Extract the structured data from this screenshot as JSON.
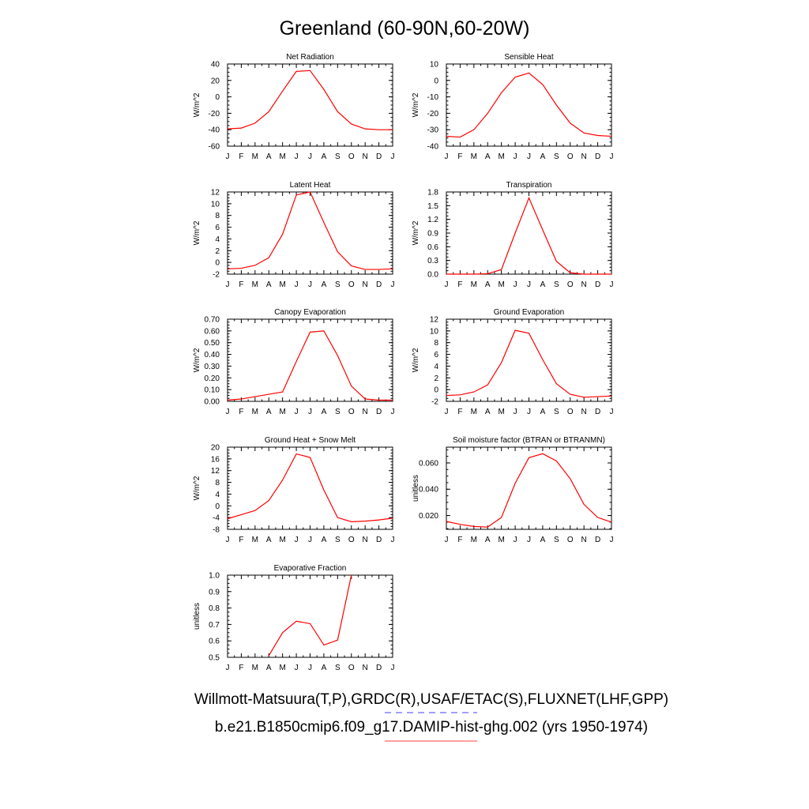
{
  "title": "Greenland (60-90N,60-20W)",
  "line_color": "#ff0000",
  "legend": {
    "obs_label": "Willmott-Matsuura(T,P),GRDC(R),USAF/ETAC(S),FLUXNET(LHF,GPP)",
    "obs_line_color": "#6666ff",
    "obs_line_style": "dashed",
    "model_label": "b.e21.B1850cmip6.f09_g17.DAMIP-hist-ghg.002 (yrs 1950-1974)",
    "model_line_color": "#ff6666",
    "model_line_style": "solid"
  },
  "chart_data": [
    {
      "type": "line",
      "title": "Net Radiation",
      "ylabel": "W/m^2",
      "xticks": [
        "J",
        "F",
        "M",
        "A",
        "M",
        "J",
        "J",
        "A",
        "S",
        "O",
        "N",
        "D",
        "J"
      ],
      "x": [
        1,
        2,
        3,
        4,
        5,
        6,
        7,
        8,
        9,
        10,
        11,
        12,
        13
      ],
      "ylim": [
        -60,
        40
      ],
      "yticks": [
        -60,
        -40,
        -20,
        0,
        20,
        40
      ],
      "ytick_labels": [
        "-60",
        "-40",
        "-20",
        "0",
        "20",
        "40"
      ],
      "series": [
        {
          "values": [
            -39,
            -38,
            -32,
            -18,
            7,
            31,
            32,
            9,
            -18,
            -33,
            -39,
            -40,
            -40
          ]
        }
      ]
    },
    {
      "type": "line",
      "title": "Sensible Heat",
      "ylabel": "W/m^2",
      "xticks": [
        "J",
        "F",
        "M",
        "A",
        "M",
        "J",
        "J",
        "A",
        "S",
        "O",
        "N",
        "D",
        "J"
      ],
      "x": [
        1,
        2,
        3,
        4,
        5,
        6,
        7,
        8,
        9,
        10,
        11,
        12,
        13
      ],
      "ylim": [
        -40,
        10
      ],
      "yticks": [
        -40,
        -30,
        -20,
        -10,
        0,
        10
      ],
      "ytick_labels": [
        "-40",
        "-30",
        "-20",
        "-10",
        "0",
        "10"
      ],
      "series": [
        {
          "values": [
            -34,
            -34.5,
            -30,
            -20,
            -7.5,
            2,
            4.5,
            -2.5,
            -15,
            -26,
            -32,
            -33.5,
            -34
          ]
        }
      ]
    },
    {
      "type": "line",
      "title": "Latent Heat",
      "ylabel": "W/m^2",
      "xticks": [
        "J",
        "F",
        "M",
        "A",
        "M",
        "J",
        "J",
        "A",
        "S",
        "O",
        "N",
        "D",
        "J"
      ],
      "x": [
        1,
        2,
        3,
        4,
        5,
        6,
        7,
        8,
        9,
        10,
        11,
        12,
        13
      ],
      "ylim": [
        -2,
        12
      ],
      "yticks": [
        -2,
        0,
        2,
        4,
        6,
        8,
        10,
        12
      ],
      "ytick_labels": [
        "-2",
        "0",
        "2",
        "4",
        "6",
        "8",
        "10",
        "12"
      ],
      "series": [
        {
          "values": [
            -1.1,
            -1,
            -0.5,
            0.8,
            4.8,
            11.5,
            12,
            6.8,
            1.8,
            -0.6,
            -1.2,
            -1.2,
            -1.1
          ]
        }
      ]
    },
    {
      "type": "line",
      "title": "Transpiration",
      "ylabel": "W/m^2",
      "xticks": [
        "J",
        "F",
        "M",
        "A",
        "M",
        "J",
        "J",
        "A",
        "S",
        "O",
        "N",
        "D",
        "J"
      ],
      "x": [
        1,
        2,
        3,
        4,
        5,
        6,
        7,
        8,
        9,
        10,
        11,
        12,
        13
      ],
      "ylim": [
        0,
        1.8
      ],
      "yticks": [
        0,
        0.3,
        0.6,
        0.9,
        1.2,
        1.5,
        1.8
      ],
      "ytick_labels": [
        "0.0",
        "0.3",
        "0.6",
        "0.9",
        "1.2",
        "1.5",
        "1.8"
      ],
      "series": [
        {
          "values": [
            0,
            0,
            0,
            0.01,
            0.1,
            0.9,
            1.67,
            0.97,
            0.28,
            0.03,
            0,
            0,
            0
          ]
        }
      ]
    },
    {
      "type": "line",
      "title": "Canopy Evaporation",
      "ylabel": "W/m^2",
      "xticks": [
        "J",
        "F",
        "M",
        "A",
        "M",
        "J",
        "J",
        "A",
        "S",
        "O",
        "N",
        "D",
        "J"
      ],
      "x": [
        1,
        2,
        3,
        4,
        5,
        6,
        7,
        8,
        9,
        10,
        11,
        12,
        13
      ],
      "ylim": [
        0,
        0.7
      ],
      "yticks": [
        0,
        0.1,
        0.2,
        0.3,
        0.4,
        0.5,
        0.6,
        0.7
      ],
      "ytick_labels": [
        "0.00",
        "0.10",
        "0.20",
        "0.30",
        "0.40",
        "0.50",
        "0.60",
        "0.70"
      ],
      "series": [
        {
          "values": [
            0.01,
            0.02,
            0.04,
            0.06,
            0.08,
            0.34,
            0.59,
            0.6,
            0.39,
            0.13,
            0.02,
            0.01,
            0.01
          ]
        }
      ]
    },
    {
      "type": "line",
      "title": "Ground Evaporation",
      "ylabel": "W/m^2",
      "xticks": [
        "J",
        "F",
        "M",
        "A",
        "M",
        "J",
        "J",
        "A",
        "S",
        "O",
        "N",
        "D",
        "J"
      ],
      "x": [
        1,
        2,
        3,
        4,
        5,
        6,
        7,
        8,
        9,
        10,
        11,
        12,
        13
      ],
      "ylim": [
        -2,
        12
      ],
      "yticks": [
        -2,
        0,
        2,
        4,
        6,
        8,
        10,
        12
      ],
      "ytick_labels": [
        "-2",
        "0",
        "2",
        "4",
        "6",
        "8",
        "10",
        "12"
      ],
      "series": [
        {
          "values": [
            -1,
            -0.9,
            -0.4,
            0.8,
            4.6,
            10.1,
            9.6,
            5.1,
            1,
            -0.8,
            -1.3,
            -1.2,
            -1.1
          ]
        }
      ]
    },
    {
      "type": "line",
      "title": "Ground Heat + Snow Melt",
      "ylabel": "W/m^2",
      "xticks": [
        "J",
        "F",
        "M",
        "A",
        "M",
        "J",
        "J",
        "A",
        "S",
        "O",
        "N",
        "D",
        "J"
      ],
      "x": [
        1,
        2,
        3,
        4,
        5,
        6,
        7,
        8,
        9,
        10,
        11,
        12,
        13
      ],
      "ylim": [
        -8,
        20
      ],
      "yticks": [
        -8,
        -4,
        0,
        4,
        8,
        12,
        16,
        20
      ],
      "ytick_labels": [
        "-8",
        "-4",
        "0",
        "4",
        "8",
        "12",
        "16",
        "20"
      ],
      "series": [
        {
          "values": [
            -4.4,
            -3,
            -1.6,
            1.8,
            8.8,
            17.7,
            16.5,
            5.4,
            -4,
            -5.4,
            -5.2,
            -4.8,
            -4.2
          ]
        }
      ]
    },
    {
      "type": "line",
      "title": "Soil moisture factor (BTRAN or BTRANMN)",
      "ylabel": "unitless",
      "xticks": [
        "J",
        "F",
        "M",
        "A",
        "M",
        "J",
        "J",
        "A",
        "S",
        "O",
        "N",
        "D",
        "J"
      ],
      "x": [
        1,
        2,
        3,
        4,
        5,
        6,
        7,
        8,
        9,
        10,
        11,
        12,
        13
      ],
      "ylim": [
        0.0095,
        0.072
      ],
      "yticks": [
        0.02,
        0.04,
        0.06
      ],
      "ytick_labels": [
        "0.020",
        "0.040",
        "0.060"
      ],
      "series": [
        {
          "values": [
            0.0155,
            0.0133,
            0.0117,
            0.0112,
            0.0185,
            0.0445,
            0.064,
            0.067,
            0.0615,
            0.048,
            0.0285,
            0.0185,
            0.015
          ]
        }
      ]
    },
    {
      "type": "line",
      "title": "Evaporative Fraction",
      "ylabel": "unitless",
      "xticks": [
        "J",
        "F",
        "M",
        "A",
        "M",
        "J",
        "J",
        "A",
        "S",
        "O",
        "N",
        "D",
        "J"
      ],
      "x": [
        1,
        2,
        3,
        4,
        5,
        6,
        7,
        8,
        9,
        10,
        11,
        12,
        13
      ],
      "ylim": [
        0.5,
        1.0
      ],
      "yticks": [
        0.5,
        0.6,
        0.7,
        0.8,
        0.9,
        1.0
      ],
      "ytick_labels": [
        "0.5",
        "0.6",
        "0.7",
        "0.8",
        "0.9",
        "1.0"
      ],
      "series": [
        {
          "values": [
            null,
            null,
            null,
            0.51,
            0.65,
            0.72,
            0.705,
            0.575,
            0.605,
            1.0,
            null,
            null,
            null
          ]
        }
      ]
    }
  ]
}
